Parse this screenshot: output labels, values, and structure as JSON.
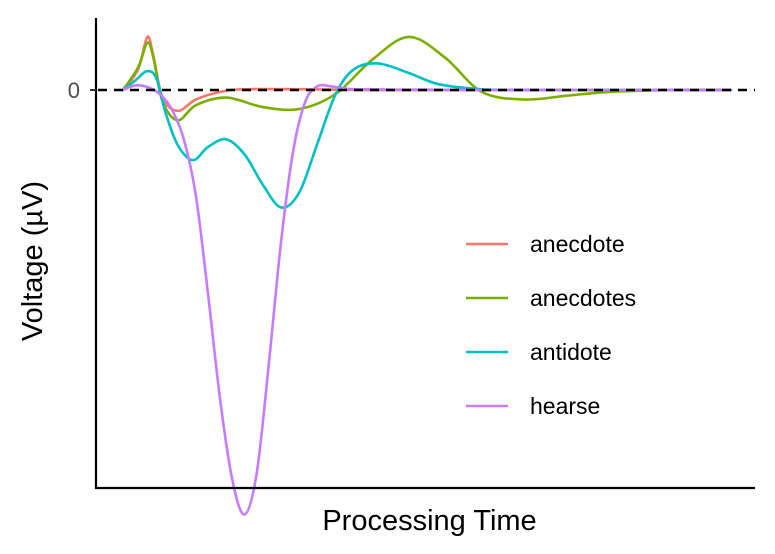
{
  "chart_data": {
    "type": "line",
    "title": "",
    "xlabel": "Processing Time",
    "ylabel": "Voltage (µV)",
    "y_ticks": [
      {
        "value": 0,
        "label": "0"
      }
    ],
    "xlim": [
      0,
      100
    ],
    "ylim": [
      -10.5,
      1.9
    ],
    "zero_reference_line": {
      "y": 0,
      "style": "dashed"
    },
    "grid": false,
    "legend_position": "right-center",
    "series": [
      {
        "name": "anecdote",
        "color": "#F8766D",
        "x": [
          0,
          2.5,
          4,
          5,
          6.5,
          9,
          12,
          16,
          20,
          30,
          40,
          60,
          80,
          100
        ],
        "y": [
          0,
          0.55,
          1.4,
          0.9,
          -0.2,
          -0.55,
          -0.25,
          -0.05,
          0.02,
          0.02,
          0,
          0,
          0,
          0
        ]
      },
      {
        "name": "anecdotes",
        "color": "#7CAE00",
        "x": [
          0,
          2.5,
          4,
          5,
          6.5,
          9,
          12,
          17,
          23,
          29,
          35,
          41,
          47,
          53,
          59,
          66,
          73,
          80,
          90,
          100
        ],
        "y": [
          0,
          0.6,
          1.25,
          0.85,
          -0.3,
          -0.8,
          -0.4,
          -0.2,
          -0.45,
          -0.5,
          -0.1,
          0.8,
          1.4,
          0.85,
          -0.05,
          -0.25,
          -0.15,
          -0.05,
          0,
          0
        ]
      },
      {
        "name": "antidote",
        "color": "#00BFC4",
        "x": [
          0,
          2,
          4,
          5.5,
          7,
          9,
          11.5,
          14,
          17,
          20,
          23,
          26,
          29,
          32,
          35,
          38,
          42,
          47,
          52,
          59,
          66,
          80,
          100
        ],
        "y": [
          0,
          0.25,
          0.5,
          0.3,
          -0.6,
          -1.45,
          -1.85,
          -1.5,
          -1.3,
          -1.7,
          -2.5,
          -3.1,
          -2.7,
          -1.4,
          -0.1,
          0.55,
          0.7,
          0.45,
          0.15,
          0.02,
          0,
          0,
          0
        ]
      },
      {
        "name": "hearse",
        "color": "#C77CFF",
        "x": [
          0,
          2,
          4,
          6,
          8,
          10,
          12,
          14,
          16,
          18,
          20,
          22,
          24,
          26,
          28,
          30,
          32,
          34,
          36,
          38,
          40,
          45,
          50,
          60,
          70,
          80,
          100
        ],
        "y": [
          0,
          0.12,
          0.08,
          -0.1,
          -0.5,
          -1.3,
          -2.8,
          -5.4,
          -8.2,
          -10.3,
          -11.2,
          -10.1,
          -7.2,
          -4.0,
          -1.6,
          -0.3,
          0.1,
          0.1,
          0.05,
          0.02,
          0.02,
          0.01,
          0.01,
          0,
          0,
          0,
          0
        ]
      }
    ]
  }
}
